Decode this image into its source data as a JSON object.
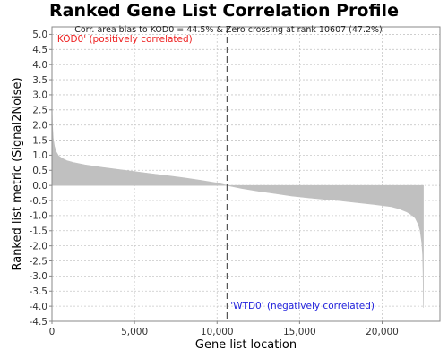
{
  "chart_data": {
    "type": "area",
    "title": "Ranked Gene List Correlation Profile",
    "subtitle": "Corr. area bias to KOD0 = 44.5% & Zero crossing at rank 10607 (47.2%)",
    "xlabel": "Gene list location",
    "ylabel": "Ranked list metric (Signal2Noise)",
    "xlim": [
      0,
      23500
    ],
    "ylim": [
      -4.5,
      5.25
    ],
    "xticks": [
      0,
      5000,
      10000,
      15000,
      20000
    ],
    "xtick_labels": [
      "0",
      "5,000",
      "10,000",
      "15,000",
      "20,000"
    ],
    "yticks": [
      5.0,
      4.5,
      4.0,
      3.5,
      3.0,
      2.5,
      2.0,
      1.5,
      1.0,
      0.5,
      0.0,
      -0.5,
      -1.0,
      -1.5,
      -2.0,
      -2.5,
      -3.0,
      -3.5,
      -4.0,
      -4.5
    ],
    "ytick_labels": [
      "5.0",
      "4.5",
      "4.0",
      "3.5",
      "3.0",
      "2.5",
      "2.0",
      "1.5",
      "1.0",
      "0.5",
      "0.0",
      "-0.5",
      "-1.0",
      "-1.5",
      "-2.0",
      "-2.5",
      "-3.0",
      "-3.5",
      "-4.0",
      "-4.5"
    ],
    "zero_crossing_rank": 10607,
    "positive_label": "'KOD0' (positively correlated)",
    "negative_label": "'WTD0' (negatively correlated)",
    "series": [
      {
        "x": [
          0,
          30,
          80,
          150,
          250,
          400,
          600,
          900,
          1300,
          2000,
          3000,
          4000,
          5000,
          6000,
          7000,
          8000,
          9000,
          10000,
          10607,
          11500,
          12500,
          13500,
          14500,
          15500,
          16500,
          17500,
          18500,
          19500,
          20500,
          21000,
          21500,
          21800,
          22000,
          22200,
          22300,
          22400,
          22450,
          22480,
          22500
        ],
        "y": [
          2.6,
          2.0,
          1.55,
          1.3,
          1.12,
          0.98,
          0.9,
          0.82,
          0.76,
          0.68,
          0.6,
          0.53,
          0.46,
          0.39,
          0.32,
          0.25,
          0.17,
          0.08,
          0.0,
          -0.1,
          -0.19,
          -0.27,
          -0.35,
          -0.41,
          -0.46,
          -0.51,
          -0.57,
          -0.63,
          -0.7,
          -0.77,
          -0.88,
          -0.98,
          -1.08,
          -1.3,
          -1.5,
          -1.9,
          -2.3,
          -3.0,
          -4.05
        ]
      }
    ],
    "grid": true,
    "colors": {
      "fill": "#c0c0c0",
      "grid": "#c8c8c8",
      "positive": "#ee2222",
      "negative": "#2222dd",
      "zero_line": "#555555"
    }
  }
}
